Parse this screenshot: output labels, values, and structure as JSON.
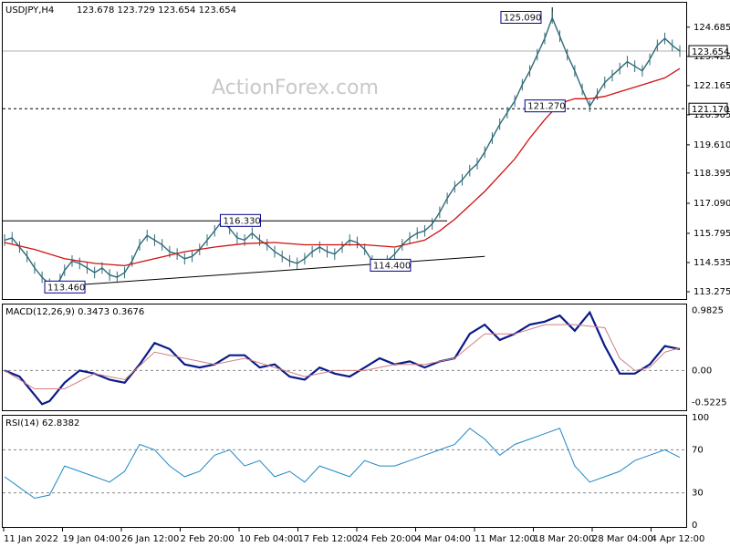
{
  "header": {
    "symbol_tf": "USDJPY,H4",
    "ohlc": "123.678 123.729 123.654 123.654"
  },
  "watermark": "ActionForex.com",
  "chart_data": [
    {
      "type": "line",
      "panel": "price",
      "title": "USDJPY,H4",
      "ylim": [
        113.0,
        125.7
      ],
      "y_ticks": [
        "124.685",
        "123.425",
        "122.165",
        "120.905",
        "119.610",
        "118.395",
        "117.090",
        "115.795",
        "114.535",
        "113.275"
      ],
      "current_price": "123.654",
      "level_line": "121.170",
      "resistance_line": 116.33,
      "labels": [
        {
          "text": "125.090",
          "x": 33.2,
          "y": 125.09
        },
        {
          "text": "116.330",
          "x": 14.5,
          "y": 116.33
        },
        {
          "text": "114.400",
          "x": 24.5,
          "y": 114.4
        },
        {
          "text": "113.460",
          "x": 2.8,
          "y": 113.46
        },
        {
          "text": "121.270",
          "x": 34.8,
          "y": 121.27
        }
      ],
      "series": [
        {
          "values": [
            [
              0,
              115.5
            ],
            [
              0.5,
              115.6
            ],
            [
              1,
              115.2
            ],
            [
              1.5,
              114.8
            ],
            [
              2,
              114.3
            ],
            [
              2.5,
              113.9
            ],
            [
              3,
              113.6
            ],
            [
              3.3,
              113.46
            ],
            [
              3.7,
              113.8
            ],
            [
              4,
              114.2
            ],
            [
              4.5,
              114.6
            ],
            [
              5,
              114.5
            ],
            [
              5.5,
              114.3
            ],
            [
              6,
              114.1
            ],
            [
              6.5,
              114.3
            ],
            [
              7,
              114.0
            ],
            [
              7.5,
              113.9
            ],
            [
              8,
              114.1
            ],
            [
              8.5,
              114.6
            ],
            [
              9,
              115.3
            ],
            [
              9.5,
              115.7
            ],
            [
              10,
              115.5
            ],
            [
              10.5,
              115.3
            ],
            [
              11,
              115.0
            ],
            [
              11.5,
              114.9
            ],
            [
              12,
              114.7
            ],
            [
              12.5,
              114.8
            ],
            [
              13,
              115.1
            ],
            [
              13.5,
              115.5
            ],
            [
              14,
              115.9
            ],
            [
              14.5,
              116.33
            ],
            [
              15,
              116.0
            ],
            [
              15.5,
              115.6
            ],
            [
              16,
              115.5
            ],
            [
              16.5,
              115.8
            ],
            [
              17,
              115.5
            ],
            [
              17.5,
              115.3
            ],
            [
              18,
              115.0
            ],
            [
              18.5,
              114.8
            ],
            [
              19,
              114.6
            ],
            [
              19.5,
              114.5
            ],
            [
              20,
              114.7
            ],
            [
              20.5,
              115.0
            ],
            [
              21,
              115.2
            ],
            [
              21.5,
              115.0
            ],
            [
              22,
              114.9
            ],
            [
              22.5,
              115.2
            ],
            [
              23,
              115.5
            ],
            [
              23.5,
              115.4
            ],
            [
              24,
              115.1
            ],
            [
              24.5,
              114.6
            ],
            [
              25,
              114.4
            ],
            [
              25.5,
              114.6
            ],
            [
              26,
              114.9
            ],
            [
              26.5,
              115.3
            ],
            [
              27,
              115.6
            ],
            [
              27.5,
              115.8
            ],
            [
              28,
              115.9
            ],
            [
              28.5,
              116.2
            ],
            [
              29,
              116.7
            ],
            [
              29.5,
              117.3
            ],
            [
              30,
              117.8
            ],
            [
              30.5,
              118.1
            ],
            [
              31,
              118.5
            ],
            [
              31.5,
              118.8
            ],
            [
              32,
              119.3
            ],
            [
              32.5,
              119.9
            ],
            [
              33,
              120.5
            ],
            [
              33.5,
              121.0
            ],
            [
              34,
              121.5
            ],
            [
              34.5,
              122.2
            ],
            [
              35,
              122.8
            ],
            [
              35.5,
              123.5
            ],
            [
              36,
              124.2
            ],
            [
              36.5,
              125.09
            ],
            [
              37,
              124.3
            ],
            [
              37.5,
              123.5
            ],
            [
              38,
              122.8
            ],
            [
              38.5,
              122.0
            ],
            [
              39,
              121.27
            ],
            [
              39.5,
              121.8
            ],
            [
              40,
              122.3
            ],
            [
              40.5,
              122.6
            ],
            [
              41,
              122.9
            ],
            [
              41.5,
              123.2
            ],
            [
              42,
              123.0
            ],
            [
              42.5,
              122.8
            ],
            [
              43,
              123.3
            ],
            [
              43.5,
              123.9
            ],
            [
              44,
              124.2
            ],
            [
              44.5,
              123.9
            ],
            [
              45,
              123.654
            ]
          ]
        },
        {
          "name": "MA",
          "values": [
            [
              0,
              115.4
            ],
            [
              2,
              115.1
            ],
            [
              4,
              114.7
            ],
            [
              6,
              114.5
            ],
            [
              8,
              114.4
            ],
            [
              10,
              114.7
            ],
            [
              12,
              115.0
            ],
            [
              14,
              115.2
            ],
            [
              16,
              115.35
            ],
            [
              18,
              115.4
            ],
            [
              20,
              115.3
            ],
            [
              22,
              115.3
            ],
            [
              24,
              115.3
            ],
            [
              26,
              115.2
            ],
            [
              28,
              115.5
            ],
            [
              29,
              115.9
            ],
            [
              30,
              116.4
            ],
            [
              31,
              117.0
            ],
            [
              32,
              117.6
            ],
            [
              33,
              118.3
            ],
            [
              34,
              119.0
            ],
            [
              35,
              119.9
            ],
            [
              36,
              120.7
            ],
            [
              37,
              121.4
            ],
            [
              38,
              121.6
            ],
            [
              39,
              121.6
            ],
            [
              40,
              121.7
            ],
            [
              41,
              121.9
            ],
            [
              42,
              122.1
            ],
            [
              43,
              122.3
            ],
            [
              44,
              122.5
            ],
            [
              45,
              122.9
            ]
          ]
        }
      ]
    },
    {
      "type": "line",
      "panel": "macd",
      "title": "MACD(12,26,9) 0.3473 0.3676",
      "ylim": [
        -0.62,
        1.05
      ],
      "y_ticks": [
        "0.9825",
        "0.00",
        "-0.5225"
      ],
      "series": [
        {
          "name": "MACD",
          "values": [
            [
              0,
              0
            ],
            [
              1,
              -0.1
            ],
            [
              2,
              -0.4
            ],
            [
              2.5,
              -0.55
            ],
            [
              3,
              -0.5
            ],
            [
              4,
              -0.2
            ],
            [
              5,
              0.0
            ],
            [
              6,
              -0.05
            ],
            [
              7,
              -0.15
            ],
            [
              8,
              -0.2
            ],
            [
              9,
              0.1
            ],
            [
              10,
              0.45
            ],
            [
              11,
              0.35
            ],
            [
              12,
              0.1
            ],
            [
              13,
              0.05
            ],
            [
              14,
              0.1
            ],
            [
              15,
              0.25
            ],
            [
              16,
              0.25
            ],
            [
              17,
              0.05
            ],
            [
              18,
              0.1
            ],
            [
              19,
              -0.1
            ],
            [
              20,
              -0.15
            ],
            [
              21,
              0.05
            ],
            [
              22,
              -0.05
            ],
            [
              23,
              -0.1
            ],
            [
              24,
              0.05
            ],
            [
              25,
              0.2
            ],
            [
              26,
              0.1
            ],
            [
              27,
              0.15
            ],
            [
              28,
              0.05
            ],
            [
              29,
              0.15
            ],
            [
              30,
              0.2
            ],
            [
              31,
              0.6
            ],
            [
              32,
              0.75
            ],
            [
              33,
              0.5
            ],
            [
              34,
              0.6
            ],
            [
              35,
              0.75
            ],
            [
              36,
              0.8
            ],
            [
              37,
              0.9
            ],
            [
              38,
              0.65
            ],
            [
              39,
              0.95
            ],
            [
              40,
              0.4
            ],
            [
              41,
              -0.05
            ],
            [
              42,
              -0.05
            ],
            [
              43,
              0.1
            ],
            [
              44,
              0.4
            ],
            [
              45,
              0.35
            ]
          ]
        },
        {
          "name": "Signal",
          "values": [
            [
              0,
              0
            ],
            [
              2,
              -0.3
            ],
            [
              4,
              -0.3
            ],
            [
              6,
              -0.05
            ],
            [
              8,
              -0.15
            ],
            [
              10,
              0.3
            ],
            [
              12,
              0.2
            ],
            [
              14,
              0.1
            ],
            [
              16,
              0.2
            ],
            [
              18,
              0.05
            ],
            [
              20,
              -0.1
            ],
            [
              22,
              0.0
            ],
            [
              24,
              0.0
            ],
            [
              26,
              0.1
            ],
            [
              28,
              0.1
            ],
            [
              30,
              0.2
            ],
            [
              32,
              0.6
            ],
            [
              34,
              0.6
            ],
            [
              36,
              0.75
            ],
            [
              38,
              0.75
            ],
            [
              40,
              0.7
            ],
            [
              41,
              0.2
            ],
            [
              42,
              0.0
            ],
            [
              43,
              0.05
            ],
            [
              44,
              0.3
            ],
            [
              45,
              0.37
            ]
          ]
        }
      ]
    },
    {
      "type": "line",
      "panel": "rsi",
      "title": "RSI(14) 62.8382",
      "ylim": [
        0,
        100
      ],
      "y_ticks": [
        "100",
        "70",
        "30",
        "0"
      ],
      "x_tick_labels": [
        "11 Jan 2022",
        "19 Jan 04:00",
        "26 Jan 12:00",
        "2 Feb 20:00",
        "10 Feb 04:00",
        "17 Feb 12:00",
        "24 Feb 20:00",
        "4 Mar 04:00",
        "11 Mar 12:00",
        "18 Mar 20:00",
        "28 Mar 04:00",
        "4 Apr 12:00"
      ],
      "series": [
        {
          "name": "RSI",
          "values": [
            [
              0,
              45
            ],
            [
              1,
              35
            ],
            [
              2,
              25
            ],
            [
              3,
              28
            ],
            [
              4,
              55
            ],
            [
              5,
              50
            ],
            [
              6,
              45
            ],
            [
              7,
              40
            ],
            [
              8,
              50
            ],
            [
              9,
              75
            ],
            [
              10,
              70
            ],
            [
              11,
              55
            ],
            [
              12,
              45
            ],
            [
              13,
              50
            ],
            [
              14,
              65
            ],
            [
              15,
              70
            ],
            [
              16,
              55
            ],
            [
              17,
              60
            ],
            [
              18,
              45
            ],
            [
              19,
              50
            ],
            [
              20,
              40
            ],
            [
              21,
              55
            ],
            [
              22,
              50
            ],
            [
              23,
              45
            ],
            [
              24,
              60
            ],
            [
              25,
              55
            ],
            [
              26,
              55
            ],
            [
              27,
              60
            ],
            [
              28,
              65
            ],
            [
              29,
              70
            ],
            [
              30,
              75
            ],
            [
              31,
              90
            ],
            [
              32,
              80
            ],
            [
              33,
              65
            ],
            [
              34,
              75
            ],
            [
              35,
              80
            ],
            [
              36,
              85
            ],
            [
              37,
              90
            ],
            [
              38,
              55
            ],
            [
              39,
              40
            ],
            [
              40,
              45
            ],
            [
              41,
              50
            ],
            [
              42,
              60
            ],
            [
              43,
              65
            ],
            [
              44,
              70
            ],
            [
              45,
              63
            ]
          ]
        }
      ]
    }
  ]
}
